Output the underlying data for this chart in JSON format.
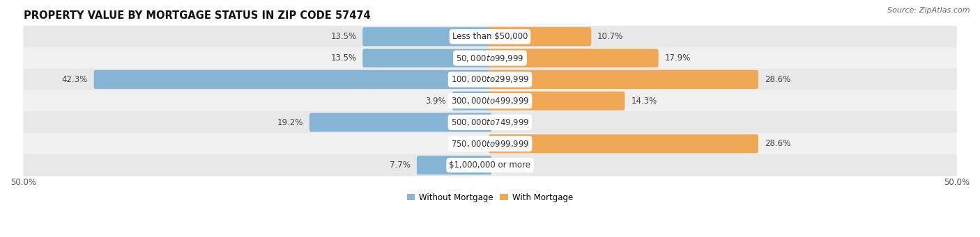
{
  "title": "PROPERTY VALUE BY MORTGAGE STATUS IN ZIP CODE 57474",
  "source": "Source: ZipAtlas.com",
  "categories": [
    "Less than $50,000",
    "$50,000 to $99,999",
    "$100,000 to $299,999",
    "$300,000 to $499,999",
    "$500,000 to $749,999",
    "$750,000 to $999,999",
    "$1,000,000 or more"
  ],
  "without_mortgage": [
    13.5,
    13.5,
    42.3,
    3.9,
    19.2,
    0.0,
    7.7
  ],
  "with_mortgage": [
    10.7,
    17.9,
    28.6,
    14.3,
    0.0,
    28.6,
    0.0
  ],
  "color_without": "#85b4d4",
  "color_with": "#f0a855",
  "color_with_light": "#f5c896",
  "bar_height": 0.58,
  "bar_rounding": 0.15,
  "xlim": [
    -50.0,
    50.0
  ],
  "x_left_label": "50.0%",
  "x_right_label": "50.0%",
  "row_colors": [
    "#e8e8e8",
    "#f0f0f0"
  ],
  "title_fontsize": 10.5,
  "source_fontsize": 8,
  "label_fontsize": 8.5,
  "category_fontsize": 8.5,
  "tick_fontsize": 8.5,
  "legend_fontsize": 8.5
}
